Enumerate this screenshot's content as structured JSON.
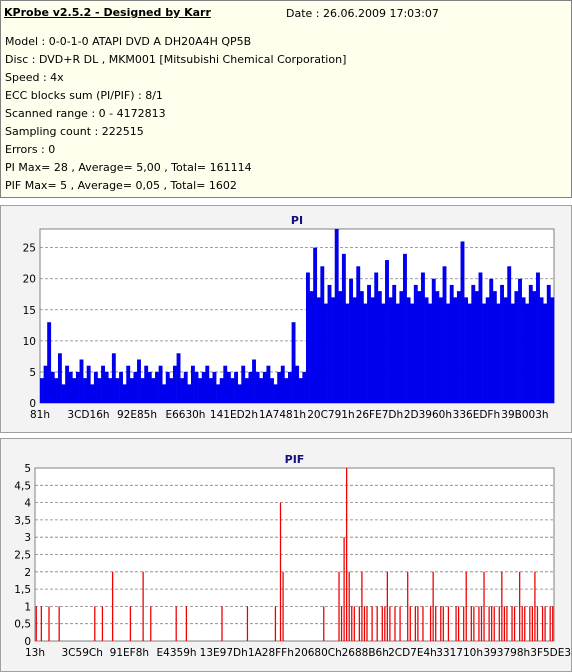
{
  "header": {
    "title": "KProbe v2.5.2 - Designed by Karr",
    "date": "Date : 26.06.2009 17:03:07",
    "lines": [
      "Model : 0-0-1-0 ATAPI   DVD A  DH20A4H   QP5B",
      "Disc : DVD+R DL , MKM001 [Mitsubishi Chemical Corporation]",
      "Speed : 4x",
      "ECC blocks sum (PI/PIF) : 8/1",
      "Scanned range : 0 - 4172813",
      "Sampling count : 222515",
      "Errors : 0",
      "PI Max= 28 , Average= 5,00 , Total= 161114",
      "PIF Max= 5 , Average= 0,05 , Total= 1602"
    ]
  },
  "colors": {
    "pi_fill": "#0000ee",
    "pif_fill": "#ee0000",
    "grid": "#808080",
    "title": "#101080"
  },
  "chart_data": [
    {
      "type": "area",
      "title": "PI",
      "ylim": [
        0,
        28
      ],
      "yticks": [
        "0",
        "5",
        "10",
        "15",
        "20",
        "25"
      ],
      "x_tick_labels": [
        "81h",
        "3CD16h",
        "92E85h",
        "E6630h",
        "141ED2h",
        "1A7481h",
        "20C791h",
        "26FE7Dh",
        "2D3960h",
        "336EDFh",
        "39B003h"
      ],
      "grid": true,
      "series": [
        {
          "values": [
            4,
            6,
            13,
            5,
            4,
            8,
            3,
            6,
            5,
            4,
            5,
            7,
            4,
            6,
            3,
            5,
            4,
            6,
            5,
            4,
            8,
            4,
            5,
            3,
            6,
            4,
            5,
            7,
            4,
            6,
            5,
            4,
            5,
            6,
            3,
            5,
            4,
            6,
            8,
            4,
            5,
            3,
            6,
            5,
            4,
            5,
            6,
            4,
            5,
            3,
            4,
            6,
            5,
            4,
            5,
            3,
            6,
            4,
            5,
            7,
            5,
            4,
            5,
            6,
            4,
            3,
            5,
            6,
            4,
            5,
            13,
            6,
            4,
            5,
            21,
            18,
            25,
            17,
            22,
            16,
            19,
            17,
            28,
            18,
            24,
            16,
            20,
            17,
            22,
            18,
            16,
            19,
            17,
            21,
            18,
            16,
            23,
            17,
            19,
            16,
            18,
            24,
            17,
            16,
            19,
            18,
            21,
            17,
            16,
            20,
            18,
            17,
            22,
            16,
            19,
            17,
            18,
            26,
            17,
            16,
            19,
            18,
            21,
            16,
            17,
            20,
            18,
            16,
            19,
            17,
            22,
            16,
            18,
            20,
            17,
            16,
            19,
            18,
            21,
            17,
            16,
            19,
            17
          ]
        }
      ]
    },
    {
      "type": "bar",
      "title": "PIF",
      "ylim": [
        0,
        5
      ],
      "yticks": [
        "0",
        "0,5",
        "1",
        "1,5",
        "2",
        "2,5",
        "3",
        "3,5",
        "4",
        "4,5",
        "5"
      ],
      "x_tick_labels": [
        "13h",
        "3C59Ch",
        "91EF8h",
        "E4359h",
        "13E97Dh",
        "1A28FFh",
        "20680Ch",
        "2688B6h",
        "2CD7E4h",
        "331710h",
        "393798h",
        "3F5DE3h"
      ],
      "grid": true,
      "series": [
        {
          "values": [
            1,
            0,
            1,
            0,
            0,
            1,
            0,
            0,
            0,
            1,
            0,
            0,
            0,
            0,
            0,
            0,
            0,
            0,
            0,
            0,
            0,
            0,
            0,
            1,
            0,
            0,
            1,
            0,
            0,
            0,
            2,
            0,
            0,
            0,
            0,
            0,
            0,
            1,
            0,
            0,
            0,
            0,
            2,
            0,
            0,
            1,
            0,
            0,
            0,
            0,
            0,
            0,
            0,
            0,
            0,
            1,
            0,
            0,
            0,
            1,
            0,
            0,
            0,
            0,
            0,
            0,
            0,
            0,
            0,
            0,
            0,
            0,
            0,
            1,
            0,
            0,
            0,
            0,
            0,
            0,
            0,
            0,
            0,
            1,
            0,
            0,
            0,
            0,
            0,
            0,
            0,
            0,
            0,
            0,
            1,
            0,
            4,
            2,
            0,
            0,
            0,
            0,
            0,
            0,
            0,
            0,
            0,
            0,
            0,
            0,
            0,
            0,
            0,
            1,
            0,
            0,
            0,
            0,
            0,
            2,
            1,
            3,
            5,
            2,
            1,
            1,
            0,
            1,
            2,
            1,
            1,
            0,
            1,
            0,
            1,
            0,
            1,
            1,
            2,
            1,
            0,
            1,
            0,
            1,
            0,
            0,
            2,
            1,
            0,
            1,
            1,
            0,
            1,
            0,
            0,
            1,
            2,
            1,
            0,
            1,
            1,
            0,
            1,
            0,
            0,
            1,
            1,
            0,
            1,
            2,
            0,
            1,
            1,
            0,
            1,
            1,
            2,
            0,
            1,
            1,
            1,
            0,
            1,
            2,
            1,
            1,
            0,
            1,
            1,
            0,
            2,
            1,
            1,
            0,
            1,
            1,
            2,
            1,
            0,
            1,
            1,
            0,
            1,
            1
          ]
        }
      ]
    }
  ]
}
